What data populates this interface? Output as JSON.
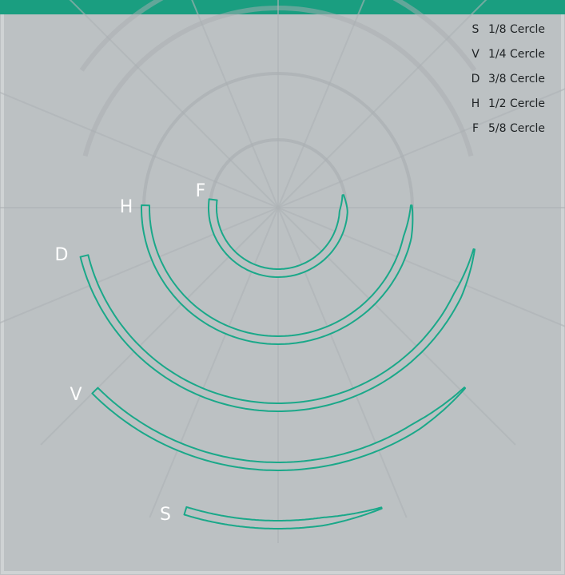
{
  "needles": [
    {
      "letter": "S",
      "legend": "1/8 Cercle"
    },
    {
      "letter": "V",
      "legend": "1/4 Cercle"
    },
    {
      "letter": "D",
      "legend": "3/8 Cercle"
    },
    {
      "letter": "H",
      "legend": "1/2 Cercle"
    },
    {
      "letter": "F",
      "legend": "5/8 Cercle"
    }
  ]
}
